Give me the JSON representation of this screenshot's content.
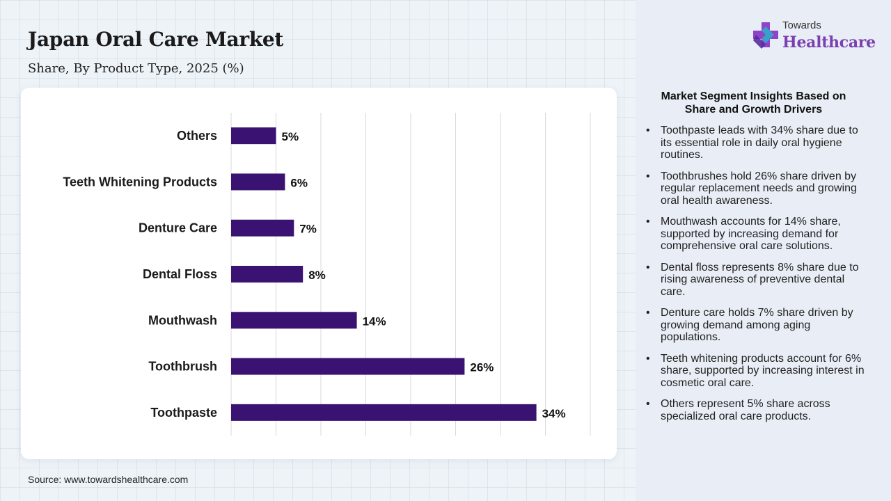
{
  "title": "Japan Oral Care Market",
  "subtitle": "Share, By Product Type, 2025 (%)",
  "source": "Source: www.towardshealthcare.com",
  "logo": {
    "line1": "Towards",
    "line2": "Healthcare",
    "icon": "medical-cross-logo-icon"
  },
  "insights": {
    "title": "Market Segment Insights Based on Share and Growth Drivers",
    "items": [
      "Toothpaste leads with 34% share due to its essential role in daily oral hygiene routines.",
      "Toothbrushes hold 26% share driven by regular replacement needs and growing oral health awareness.",
      "Mouthwash accounts for 14% share, supported by increasing demand for comprehensive oral care solutions.",
      "Dental floss represents 8% share due to rising awareness of preventive dental care.",
      "Denture care holds 7% share driven by growing demand among aging populations.",
      "Teeth whitening products account for 6% share, supported by increasing interest in cosmetic oral care.",
      "Others represent 5% share across specialized oral care products."
    ]
  },
  "colors": {
    "bar": "#3a1272",
    "grid": "#d9d9d9",
    "panel": "#e9eef6",
    "accent": "#7a3fb0"
  },
  "chart_data": {
    "type": "bar",
    "orientation": "horizontal",
    "categories": [
      "Others",
      "Teeth Whitening Products",
      "Denture Care",
      "Dental Floss",
      "Mouthwash",
      "Toothbrush",
      "Toothpaste"
    ],
    "values": [
      5,
      6,
      7,
      8,
      14,
      26,
      34
    ],
    "value_labels": [
      "5%",
      "6%",
      "7%",
      "8%",
      "14%",
      "26%",
      "34%"
    ],
    "xlim": [
      0,
      40
    ],
    "grid": true,
    "x_tick_labels_visible": false,
    "legend": "none"
  }
}
